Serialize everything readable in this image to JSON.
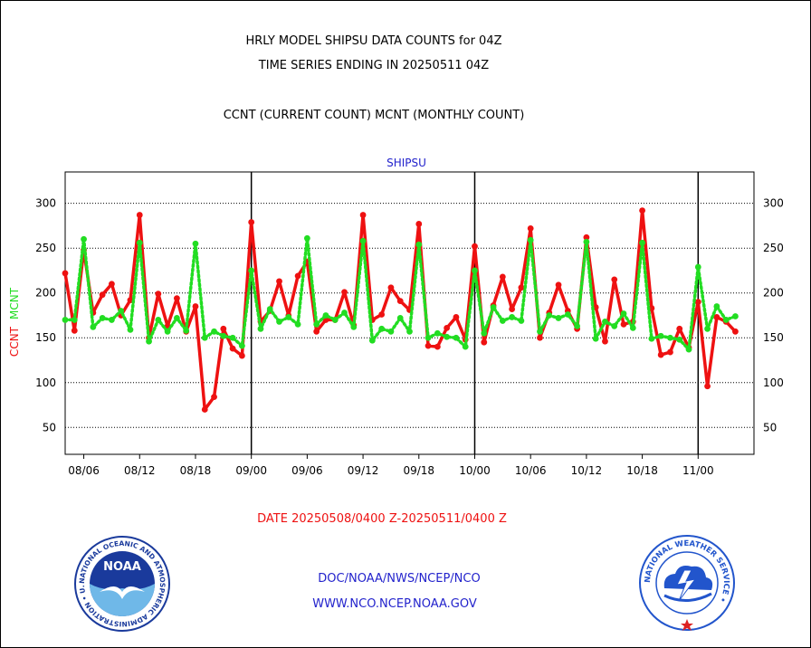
{
  "header": {
    "title_line1": "HRLY MODEL SHIPSU DATA COUNTS for 04Z",
    "title_line2": "TIME SERIES ENDING IN 20250511 04Z",
    "legend_line": "CCNT (CURRENT COUNT) MCNT (MONTHLY COUNT)"
  },
  "footer": {
    "date_range": "DATE 20250508/0400 Z-20250511/0400 Z",
    "link1": "DOC/NOAA/NWS/NCEP/NCO",
    "link2": "WWW.NCO.NCEP.NOAA.GOV"
  },
  "logos": {
    "noaa_text": "NOAA",
    "noaa_ring": "NATIONAL OCEANIC AND ATMOSPHERIC ADMINISTRATION • U.S. DEPARTMENT OF COMMERCE •",
    "nws_ring": "NATIONAL WEATHER SERVICE •"
  },
  "colors": {
    "ccnt": "#ee1111",
    "mcnt": "#22dd22",
    "panel_title": "#2222cc",
    "date_text": "#ee1111",
    "links": "#2222cc",
    "noaa_blue": "#1a3a9c",
    "nws_blue": "#2255cc"
  },
  "chart_data": {
    "type": "line",
    "title": "SHIPSU",
    "ylabel_parts": [
      "CCNT",
      "MCNT"
    ],
    "ylim": [
      20,
      335
    ],
    "yticks": [
      50,
      100,
      150,
      200,
      250,
      300
    ],
    "xlim": [
      0,
      74
    ],
    "x_tick_labels": [
      {
        "x": 2,
        "label": "08/06"
      },
      {
        "x": 8,
        "label": "08/12"
      },
      {
        "x": 14,
        "label": "08/18"
      },
      {
        "x": 20,
        "label": "09/00"
      },
      {
        "x": 26,
        "label": "09/06"
      },
      {
        "x": 32,
        "label": "09/12"
      },
      {
        "x": 38,
        "label": "09/18"
      },
      {
        "x": 44,
        "label": "10/00"
      },
      {
        "x": 50,
        "label": "10/06"
      },
      {
        "x": 56,
        "label": "10/12"
      },
      {
        "x": 62,
        "label": "10/18"
      },
      {
        "x": 68,
        "label": "11/00"
      }
    ],
    "day_boundaries": [
      20,
      44,
      68
    ],
    "grid": true,
    "series": [
      {
        "name": "CCNT",
        "color": "#ee1111",
        "values": [
          222,
          158,
          248,
          178,
          198,
          210,
          175,
          192,
          287,
          150,
          199,
          163,
          194,
          157,
          185,
          70,
          84,
          160,
          138,
          130,
          279,
          168,
          180,
          213,
          175,
          219,
          235,
          157,
          170,
          170,
          201,
          164,
          287,
          170,
          176,
          206,
          191,
          181,
          277,
          141,
          140,
          161,
          173,
          148,
          252,
          145,
          186,
          218,
          182,
          206,
          272,
          150,
          178,
          209,
          180,
          160,
          262,
          184,
          146,
          215,
          165,
          168,
          292,
          183,
          131,
          134,
          160,
          139,
          190,
          96,
          173,
          168,
          157
        ]
      },
      {
        "name": "MCNT",
        "color": "#22dd22",
        "values": [
          170,
          170,
          260,
          162,
          172,
          170,
          180,
          159,
          256,
          146,
          170,
          157,
          172,
          158,
          255,
          150,
          157,
          152,
          150,
          141,
          225,
          160,
          182,
          168,
          173,
          165,
          261,
          165,
          175,
          170,
          178,
          162,
          258,
          147,
          160,
          157,
          172,
          157,
          254,
          150,
          155,
          151,
          150,
          140,
          225,
          155,
          184,
          169,
          173,
          169,
          259,
          157,
          175,
          172,
          176,
          163,
          257,
          149,
          168,
          163,
          177,
          161,
          256,
          149,
          152,
          150,
          148,
          137,
          229,
          160,
          185,
          170,
          174
        ]
      }
    ]
  }
}
